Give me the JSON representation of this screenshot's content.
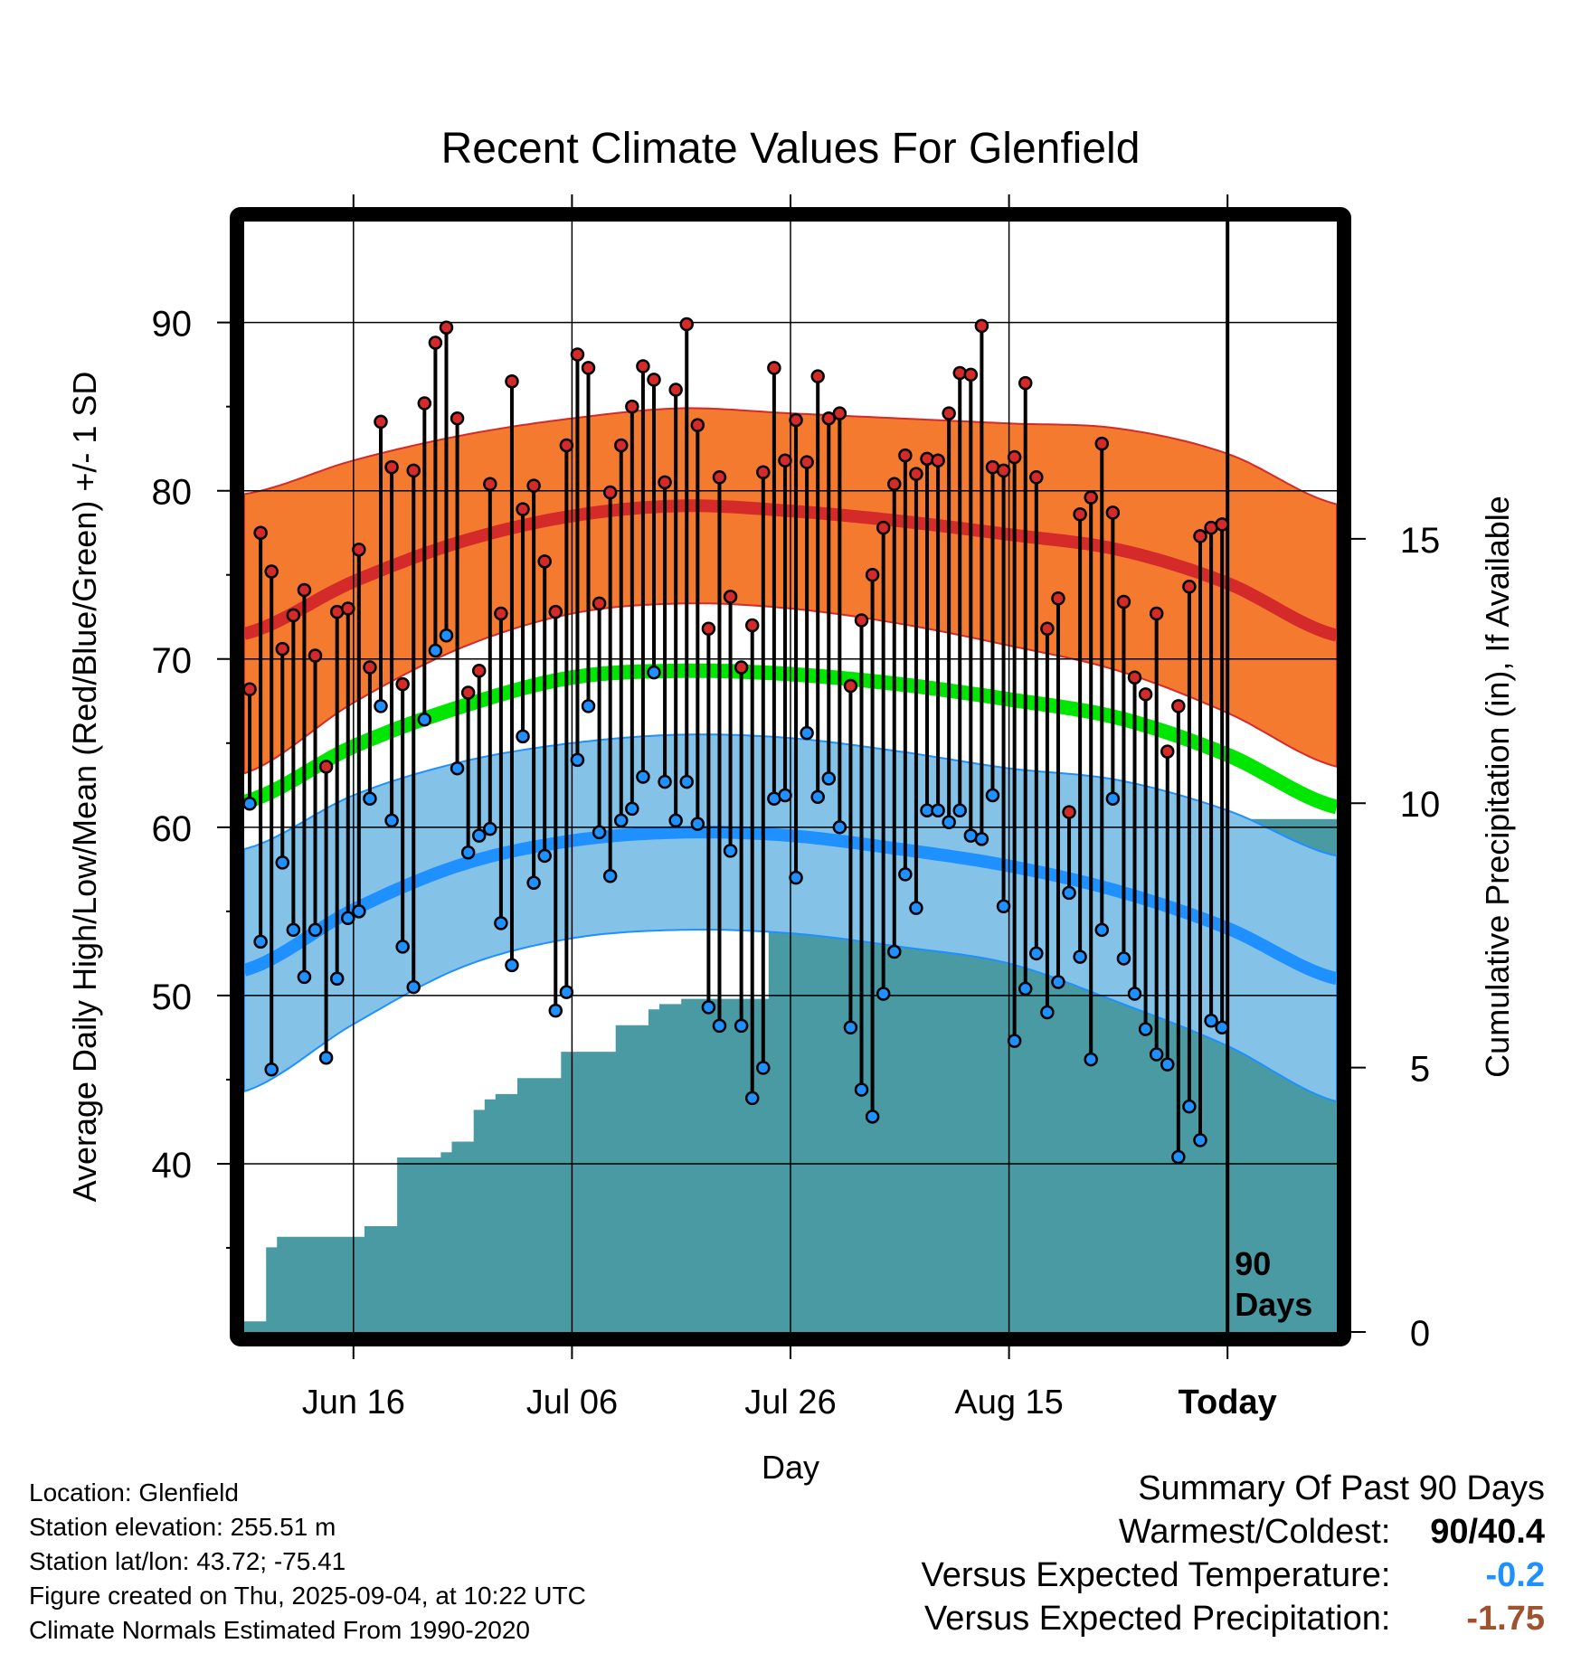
{
  "chart_data": {
    "type": "line",
    "title": "Recent Climate Values For Glenfield",
    "xlabel": "Day",
    "ylabel": "Average Daily High/Low/Mean (Red/Blue/Green) +/- 1 SD",
    "y2label": "Cumulative Precipitation (in), If Available",
    "ylim": [
      30,
      96
    ],
    "y2lim": [
      0,
      21
    ],
    "xlim": [
      0,
      100
    ],
    "x_ticks": [
      {
        "x": 10,
        "label": "Jun 16"
      },
      {
        "x": 30,
        "label": "Jul 06"
      },
      {
        "x": 50,
        "label": "Jul 26"
      },
      {
        "x": 70,
        "label": "Aug 15"
      },
      {
        "x": 90,
        "label": "Today"
      }
    ],
    "y_ticks": [
      40,
      50,
      60,
      70,
      80,
      90
    ],
    "y2_ticks": [
      0,
      5,
      10,
      15
    ],
    "today_x": 90,
    "today_label": [
      "90",
      "Days"
    ],
    "grid": true,
    "colors": {
      "high_band": "#f47a30",
      "high_mean": "#d42a2a",
      "low_band": "#85c2e8",
      "low_mean": "#1e90ff",
      "mean": "#00e600",
      "precip": "#4a9aa3",
      "high_marker": "#d42a2a",
      "low_marker": "#1e90ff"
    },
    "normals": {
      "x": [
        0,
        10,
        20,
        30,
        40,
        50,
        60,
        70,
        80,
        90,
        100
      ],
      "high_mean": [
        71.5,
        74.6,
        77.0,
        78.5,
        79.1,
        78.8,
        78.2,
        77.4,
        76.5,
        74.5,
        71.4
      ],
      "high_sd": [
        8.3,
        7.2,
        6.3,
        5.8,
        5.8,
        5.8,
        6.1,
        6.6,
        7.2,
        7.7,
        7.8
      ],
      "low_mean": [
        51.5,
        55.1,
        57.8,
        59.2,
        59.7,
        59.5,
        58.7,
        57.7,
        56.2,
        54.0,
        51.0
      ],
      "low_sd": [
        7.2,
        6.8,
        6.1,
        5.8,
        5.8,
        5.8,
        5.8,
        5.8,
        6.6,
        7.0,
        7.3
      ],
      "mean": [
        61.5,
        64.8,
        67.2,
        68.9,
        69.3,
        69.1,
        68.5,
        67.6,
        66.5,
        64.3,
        61.2
      ]
    },
    "daily": {
      "high": [
        68.2,
        77.5,
        75.2,
        70.6,
        72.6,
        74.1,
        70.2,
        63.6,
        72.8,
        73.0,
        76.5,
        69.5,
        84.1,
        81.4,
        68.5,
        81.2,
        85.2,
        88.8,
        89.7,
        84.3,
        68.0,
        69.3,
        80.4,
        72.7,
        86.5,
        78.9,
        80.3,
        75.8,
        72.8,
        82.7,
        88.1,
        87.3,
        73.3,
        79.9,
        82.7,
        85.0,
        87.4,
        86.6,
        80.5,
        86.0,
        89.9,
        83.9,
        71.8,
        80.8,
        73.7,
        69.5,
        72.0,
        81.1,
        87.3,
        81.8,
        84.2,
        81.7,
        86.8,
        84.3,
        84.6,
        68.4,
        72.3,
        75.0,
        77.8,
        80.4,
        82.1,
        81.0,
        81.9,
        81.8,
        84.6,
        87.0,
        86.9,
        89.8,
        81.4,
        81.2,
        82.0,
        86.4,
        80.8,
        71.8,
        73.6,
        60.9,
        78.6,
        79.6,
        82.8,
        78.7,
        73.4,
        68.9,
        67.9,
        72.7,
        64.5,
        67.2,
        74.3,
        77.3,
        77.8,
        78.0
      ],
      "low": [
        61.4,
        53.2,
        45.6,
        57.9,
        53.9,
        51.1,
        53.9,
        46.3,
        51.0,
        54.6,
        55.0,
        61.7,
        67.2,
        60.4,
        52.9,
        50.5,
        66.4,
        70.5,
        71.4,
        63.5,
        58.5,
        59.5,
        59.9,
        54.3,
        51.8,
        65.4,
        56.7,
        58.3,
        49.1,
        50.2,
        64.0,
        67.2,
        59.7,
        57.1,
        60.4,
        61.1,
        63.0,
        69.2,
        62.7,
        60.4,
        62.7,
        60.2,
        49.3,
        48.2,
        58.6,
        48.2,
        43.9,
        45.7,
        61.7,
        61.9,
        57.0,
        65.6,
        61.8,
        62.9,
        60.0,
        48.1,
        44.4,
        42.8,
        50.1,
        52.6,
        57.2,
        55.2,
        61.0,
        61.0,
        60.3,
        61.0,
        59.5,
        59.3,
        61.9,
        55.3,
        47.3,
        50.4,
        52.5,
        49.0,
        50.8,
        56.1,
        52.3,
        46.2,
        53.9,
        61.7,
        52.2,
        50.1,
        48.0,
        46.5,
        45.9,
        40.4,
        43.4,
        41.4,
        48.5,
        48.1
      ]
    },
    "precip_cumulative": [
      0.2,
      0.2,
      1.6,
      1.8,
      1.8,
      1.8,
      1.8,
      1.8,
      1.8,
      1.8,
      1.8,
      2.0,
      2.0,
      2.0,
      3.3,
      3.3,
      3.3,
      3.3,
      3.4,
      3.6,
      3.6,
      4.2,
      4.4,
      4.5,
      4.5,
      4.8,
      4.8,
      4.8,
      4.8,
      5.3,
      5.3,
      5.3,
      5.3,
      5.3,
      5.8,
      5.8,
      5.8,
      6.1,
      6.2,
      6.2,
      6.3,
      6.3,
      6.3,
      6.3,
      6.3,
      6.3,
      6.3,
      6.3,
      7.6,
      7.6,
      7.7,
      7.7,
      7.7,
      7.7,
      7.7,
      7.7,
      7.7,
      7.7,
      8.2,
      8.2,
      8.2,
      8.2,
      8.2,
      8.2,
      8.2,
      8.3,
      8.3,
      8.3,
      8.3,
      8.3,
      8.3,
      8.3,
      8.3,
      8.3,
      8.6,
      8.6,
      8.6,
      9.3,
      9.3,
      9.3,
      9.5,
      9.5,
      9.7,
      9.7,
      9.7,
      9.7,
      9.7,
      9.7,
      9.7,
      9.7
    ]
  },
  "info": {
    "location": "Location: Glenfield",
    "elevation": "Station elevation: 255.51 m",
    "latlon": "Station lat/lon: 43.72; -75.41",
    "created": "Figure created on Thu, 2025-09-04, at 10:22 UTC",
    "normals": "Climate Normals Estimated From 1990-2020"
  },
  "summary": {
    "title": "Summary Of Past 90 Days",
    "warmest_label": "Warmest/Coldest:",
    "warmest_value": "90/40.4",
    "temp_label": "Versus Expected Temperature:",
    "temp_value": "-0.2",
    "temp_color": "#1e90ff",
    "precip_label": "Versus Expected Precipitation:",
    "precip_value": "-1.75",
    "precip_color": "#a0522d"
  }
}
